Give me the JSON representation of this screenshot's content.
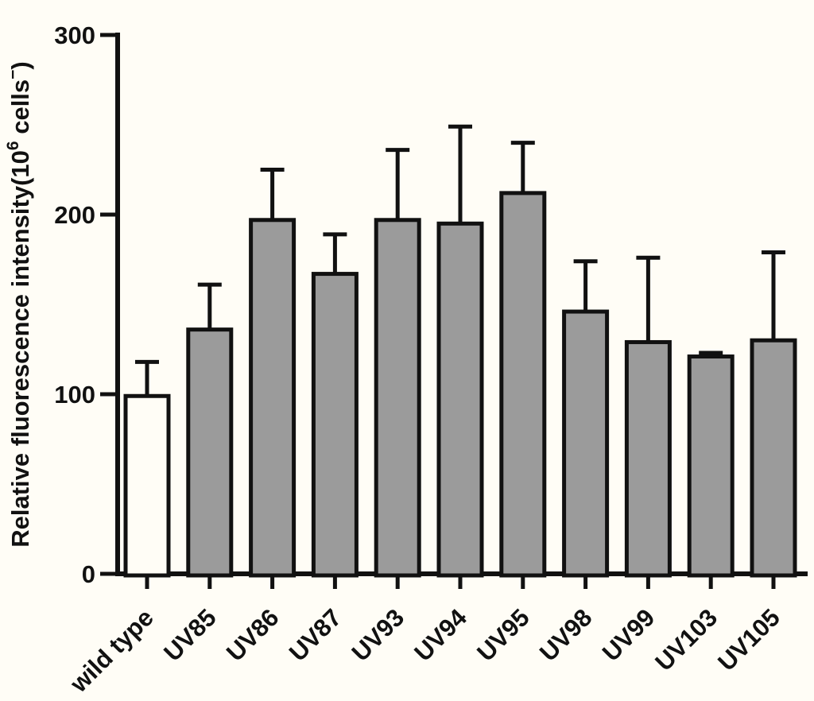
{
  "figure": {
    "background": "#fffdf6",
    "ink": "#111111"
  },
  "chart_data": {
    "type": "bar",
    "title": "",
    "xlabel": "",
    "ylabel": "Relative fluorescence intensity(10⁶ cells⁻)",
    "ylabel_parts": {
      "pre": "Relative fluorescence intensity(10",
      "sup1": "6",
      "mid": " cells",
      "sup2": "−",
      "post": ")"
    },
    "categories": [
      "wild type",
      "UV85",
      "UV86",
      "UV87",
      "UV93",
      "UV94",
      "UV95",
      "UV98",
      "UV99",
      "UV103",
      "UV105"
    ],
    "values": [
      99,
      136,
      197,
      167,
      197,
      195,
      212,
      146,
      129,
      121,
      130
    ],
    "errors_plus": [
      19,
      25,
      28,
      22,
      39,
      54,
      28,
      28,
      47,
      2,
      49
    ],
    "yticks": [
      0,
      100,
      200,
      300
    ],
    "ylim": [
      0,
      300
    ],
    "grid": false,
    "legend": "none",
    "bar_colors": {
      "wild_type": "#fffdf6",
      "mutant": "#9b9b9b"
    },
    "bar_border_color": "#111111",
    "error_bar_color": "#111111"
  }
}
